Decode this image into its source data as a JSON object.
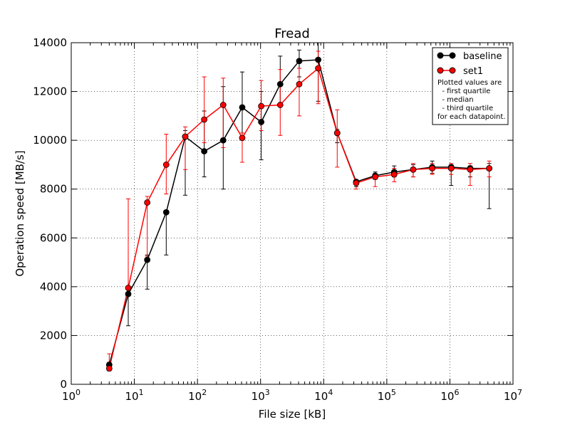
{
  "chart_data": {
    "type": "line",
    "title": "Fread",
    "xlabel": "File size [kB]",
    "ylabel": "Operation speed [MB/s]",
    "xscale": "log",
    "xlim": [
      1,
      10000000
    ],
    "ylim": [
      0,
      14000
    ],
    "xticks": [
      {
        "value": 1,
        "base": "10",
        "exp": "0"
      },
      {
        "value": 10,
        "base": "10",
        "exp": "1"
      },
      {
        "value": 100,
        "base": "10",
        "exp": "2"
      },
      {
        "value": 1000,
        "base": "10",
        "exp": "3"
      },
      {
        "value": 10000,
        "base": "10",
        "exp": "4"
      },
      {
        "value": 100000,
        "base": "10",
        "exp": "5"
      },
      {
        "value": 1000000,
        "base": "10",
        "exp": "6"
      },
      {
        "value": 10000000,
        "base": "10",
        "exp": "7"
      }
    ],
    "yticks": [
      {
        "value": 0,
        "label": "0"
      },
      {
        "value": 2000,
        "label": "2000"
      },
      {
        "value": 4000,
        "label": "4000"
      },
      {
        "value": 6000,
        "label": "6000"
      },
      {
        "value": 8000,
        "label": "8000"
      },
      {
        "value": 10000,
        "label": "10000"
      },
      {
        "value": 12000,
        "label": "12000"
      },
      {
        "value": 14000,
        "label": "14000"
      }
    ],
    "grid": true,
    "legend_position": "top-right",
    "legend_note": [
      "Plotted values are",
      "  - first quartile",
      "  - median",
      "  - third quartile",
      "for each datapoint."
    ],
    "x": [
      4,
      8,
      16,
      32,
      64,
      128,
      256,
      512,
      1024,
      2048,
      4096,
      8192,
      16384,
      32768,
      65536,
      131072,
      262144,
      524288,
      1048576,
      2097152,
      4194304
    ],
    "series": [
      {
        "name": "baseline",
        "color": "#000000",
        "values": [
          800,
          3700,
          5100,
          7050,
          10150,
          9550,
          10000,
          11350,
          10750,
          12300,
          13250,
          13300,
          10300,
          8300,
          8550,
          8700,
          8800,
          8900,
          8900,
          8850,
          8850
        ],
        "q1": [
          700,
          2400,
          3900,
          5300,
          7750,
          8500,
          8000,
          10100,
          9200,
          11400,
          12600,
          11600,
          9900,
          8100,
          8400,
          8500,
          8500,
          8650,
          8150,
          8500,
          7200
        ],
        "q3": [
          900,
          4000,
          5300,
          7100,
          10400,
          11200,
          12200,
          12800,
          12000,
          13450,
          13700,
          14000,
          10450,
          8350,
          8700,
          8950,
          9000,
          9150,
          9000,
          8950,
          9050
        ]
      },
      {
        "name": "set1",
        "color": "#ff0000",
        "values": [
          650,
          3950,
          7450,
          9000,
          10150,
          10850,
          11450,
          10100,
          11400,
          11450,
          12300,
          12950,
          10300,
          8250,
          8500,
          8600,
          8800,
          8850,
          8850,
          8800,
          8850
        ],
        "q1": [
          550,
          3900,
          5250,
          7800,
          8800,
          9900,
          9700,
          9100,
          10400,
          10200,
          11000,
          11500,
          8900,
          8000,
          8100,
          8300,
          8500,
          8600,
          8600,
          8150,
          8500
        ],
        "q3": [
          1250,
          7600,
          7700,
          10250,
          10550,
          12600,
          12550,
          10300,
          12450,
          12900,
          12950,
          13650,
          11250,
          8300,
          8600,
          8850,
          9050,
          9050,
          9050,
          9050,
          9150
        ]
      }
    ]
  }
}
